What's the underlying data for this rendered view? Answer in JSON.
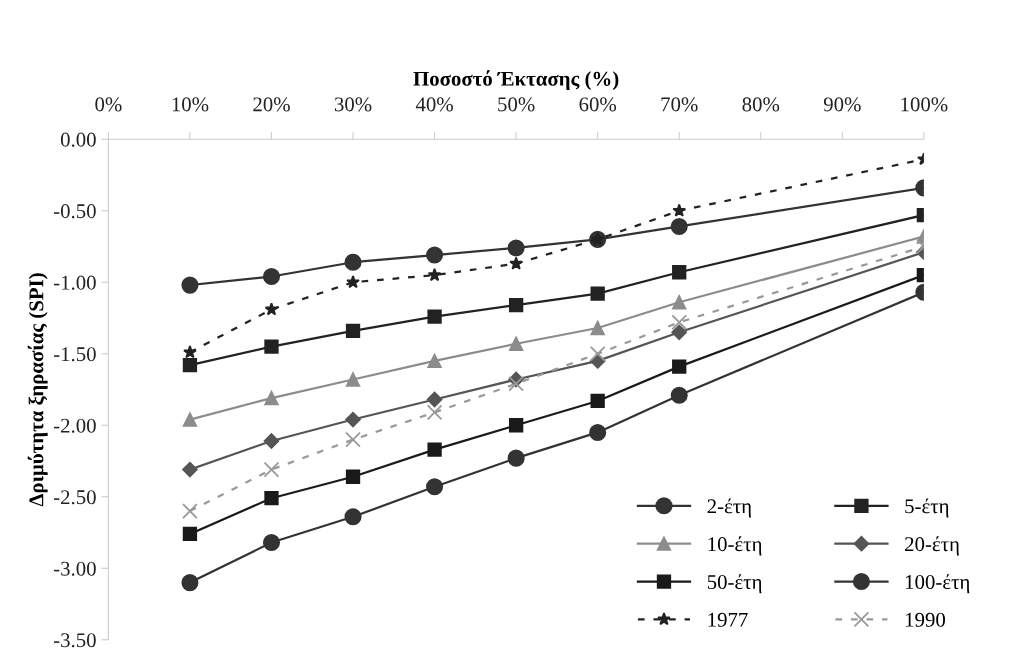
{
  "chart_data": {
    "type": "line",
    "xlabel": "Ποσοστό Έκτασης (%)",
    "ylabel": "Δριμύτητα ξηρασίας (SPI)",
    "x": [
      10,
      20,
      30,
      40,
      50,
      60,
      70,
      100
    ],
    "xlim": [
      0,
      100
    ],
    "xticks": [
      {
        "value": 0,
        "label": "0%"
      },
      {
        "value": 10,
        "label": "10%"
      },
      {
        "value": 20,
        "label": "20%"
      },
      {
        "value": 30,
        "label": "30%"
      },
      {
        "value": 40,
        "label": "40%"
      },
      {
        "value": 50,
        "label": "50%"
      },
      {
        "value": 60,
        "label": "60%"
      },
      {
        "value": 70,
        "label": "70%"
      },
      {
        "value": 80,
        "label": "80%"
      },
      {
        "value": 90,
        "label": "90%"
      },
      {
        "value": 100,
        "label": "100%"
      }
    ],
    "ylim": [
      -3.5,
      0
    ],
    "yticks": [
      {
        "value": 0,
        "label": "0.00"
      },
      {
        "value": -0.5,
        "label": "-0.50"
      },
      {
        "value": -1,
        "label": "-1.00"
      },
      {
        "value": -1.5,
        "label": "-1.50"
      },
      {
        "value": -2,
        "label": "-2.00"
      },
      {
        "value": -2.5,
        "label": "-2.50"
      },
      {
        "value": -3,
        "label": "-3.00"
      },
      {
        "value": -3.5,
        "label": "-3.50"
      }
    ],
    "grid": false,
    "legend": "bottom right",
    "series": [
      {
        "name": "2-έτη",
        "color": "#333333",
        "marker": "circle",
        "line_style": "solid",
        "values": [
          -1.02,
          -0.96,
          -0.86,
          -0.81,
          -0.76,
          -0.7,
          -0.61,
          -0.34
        ]
      },
      {
        "name": "5-έτη",
        "color": "#222222",
        "marker": "square",
        "line_style": "solid",
        "values": [
          -1.58,
          -1.45,
          -1.34,
          -1.24,
          -1.16,
          -1.08,
          -0.93,
          -0.53
        ]
      },
      {
        "name": "10-έτη",
        "color": "#8c8c8c",
        "marker": "triangle",
        "line_style": "solid",
        "values": [
          -1.96,
          -1.81,
          -1.68,
          -1.55,
          -1.43,
          -1.32,
          -1.14,
          -0.68
        ]
      },
      {
        "name": "20-έτη",
        "color": "#555555",
        "marker": "diamond",
        "line_style": "solid",
        "values": [
          -2.31,
          -2.11,
          -1.96,
          -1.82,
          -1.68,
          -1.55,
          -1.35,
          -0.79
        ]
      },
      {
        "name": "50-έτη",
        "color": "#1a1a1a",
        "marker": "square",
        "line_style": "solid",
        "values": [
          -2.76,
          -2.51,
          -2.36,
          -2.17,
          -2.0,
          -1.83,
          -1.59,
          -0.95
        ]
      },
      {
        "name": "100-έτη",
        "color": "#333333",
        "marker": "circle",
        "line_style": "solid",
        "values": [
          -3.1,
          -2.82,
          -2.64,
          -2.43,
          -2.23,
          -2.05,
          -1.79,
          -1.07
        ]
      },
      {
        "name": "1977",
        "color": "#222222",
        "marker": "star",
        "line_style": "dashed",
        "values": [
          -1.49,
          -1.19,
          -1.0,
          -0.95,
          -0.87,
          -0.7,
          -0.5,
          -0.14
        ]
      },
      {
        "name": "1990",
        "color": "#999999",
        "marker": "cross",
        "line_style": "dashed",
        "values": [
          -2.6,
          -2.31,
          -2.1,
          -1.91,
          -1.71,
          -1.5,
          -1.28,
          -0.75
        ]
      }
    ]
  }
}
